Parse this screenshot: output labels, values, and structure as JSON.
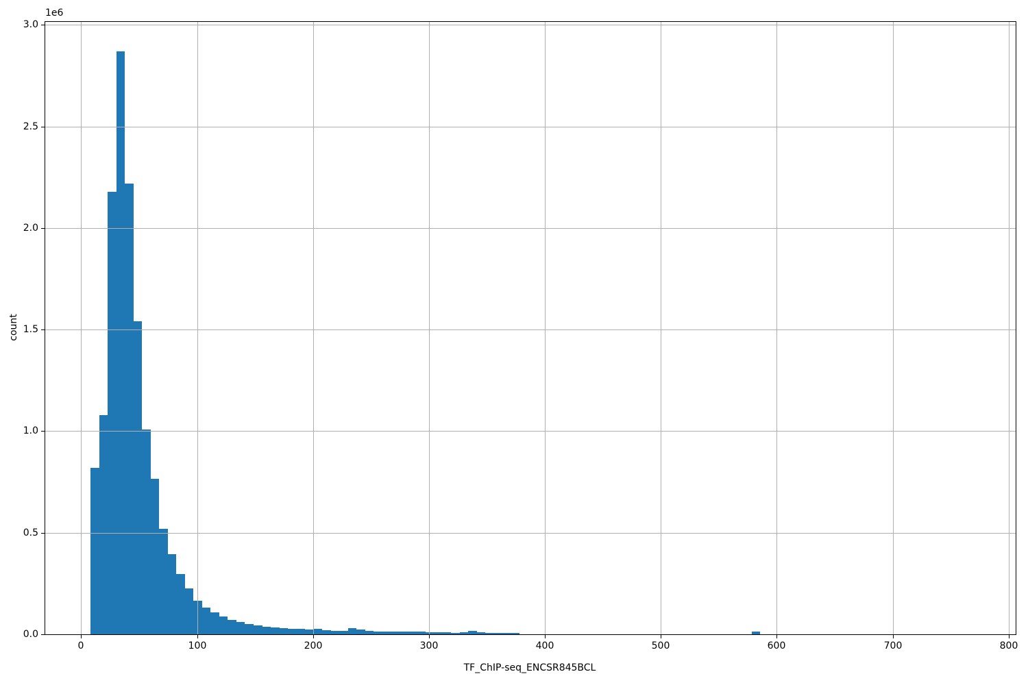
{
  "chart_data": {
    "type": "bar",
    "subtype": "histogram",
    "title": "",
    "xlabel": "TF_ChIP-seq_ENCSR845BCL",
    "ylabel": "count",
    "y_offset_text": "1e6",
    "legend": null,
    "grid": true,
    "grid_color": "#b0b0b0",
    "bar_color": "#1f77b4",
    "spine_color": "#000000",
    "xlim": [
      -31,
      806
    ],
    "ylim": [
      0,
      3015000
    ],
    "x_tick_values": [
      0,
      100,
      200,
      300,
      400,
      500,
      600,
      700,
      800
    ],
    "x_tick_labels": [
      "0",
      "100",
      "200",
      "300",
      "400",
      "500",
      "600",
      "700",
      "800"
    ],
    "y_tick_values": [
      0,
      500000,
      1000000,
      1500000,
      2000000,
      2500000,
      3000000
    ],
    "y_tick_labels": [
      "0.0",
      "0.5",
      "1.0",
      "1.5",
      "2.0",
      "2.5",
      "3.0"
    ],
    "bins": {
      "start": 8.0,
      "width": 7.405,
      "counts": [
        820000,
        1080000,
        2180000,
        2870000,
        2220000,
        1540000,
        1010000,
        765000,
        520000,
        395000,
        298000,
        225000,
        165000,
        133000,
        107000,
        88000,
        70000,
        60000,
        50000,
        44000,
        38000,
        34000,
        29000,
        28000,
        28000,
        22000,
        26000,
        20000,
        18000,
        17000,
        30000,
        23000,
        16000,
        15000,
        15000,
        14000,
        13000,
        13000,
        12000,
        11000,
        10000,
        9000,
        8000,
        9000,
        18000,
        10000,
        8000,
        8000,
        7000,
        7000,
        0,
        0,
        0,
        0,
        0,
        0,
        0,
        0,
        0,
        0,
        0,
        0,
        0,
        0,
        0,
        0,
        0,
        0,
        0,
        0,
        0,
        0,
        0,
        0,
        0,
        0,
        0,
        12000
      ]
    }
  }
}
